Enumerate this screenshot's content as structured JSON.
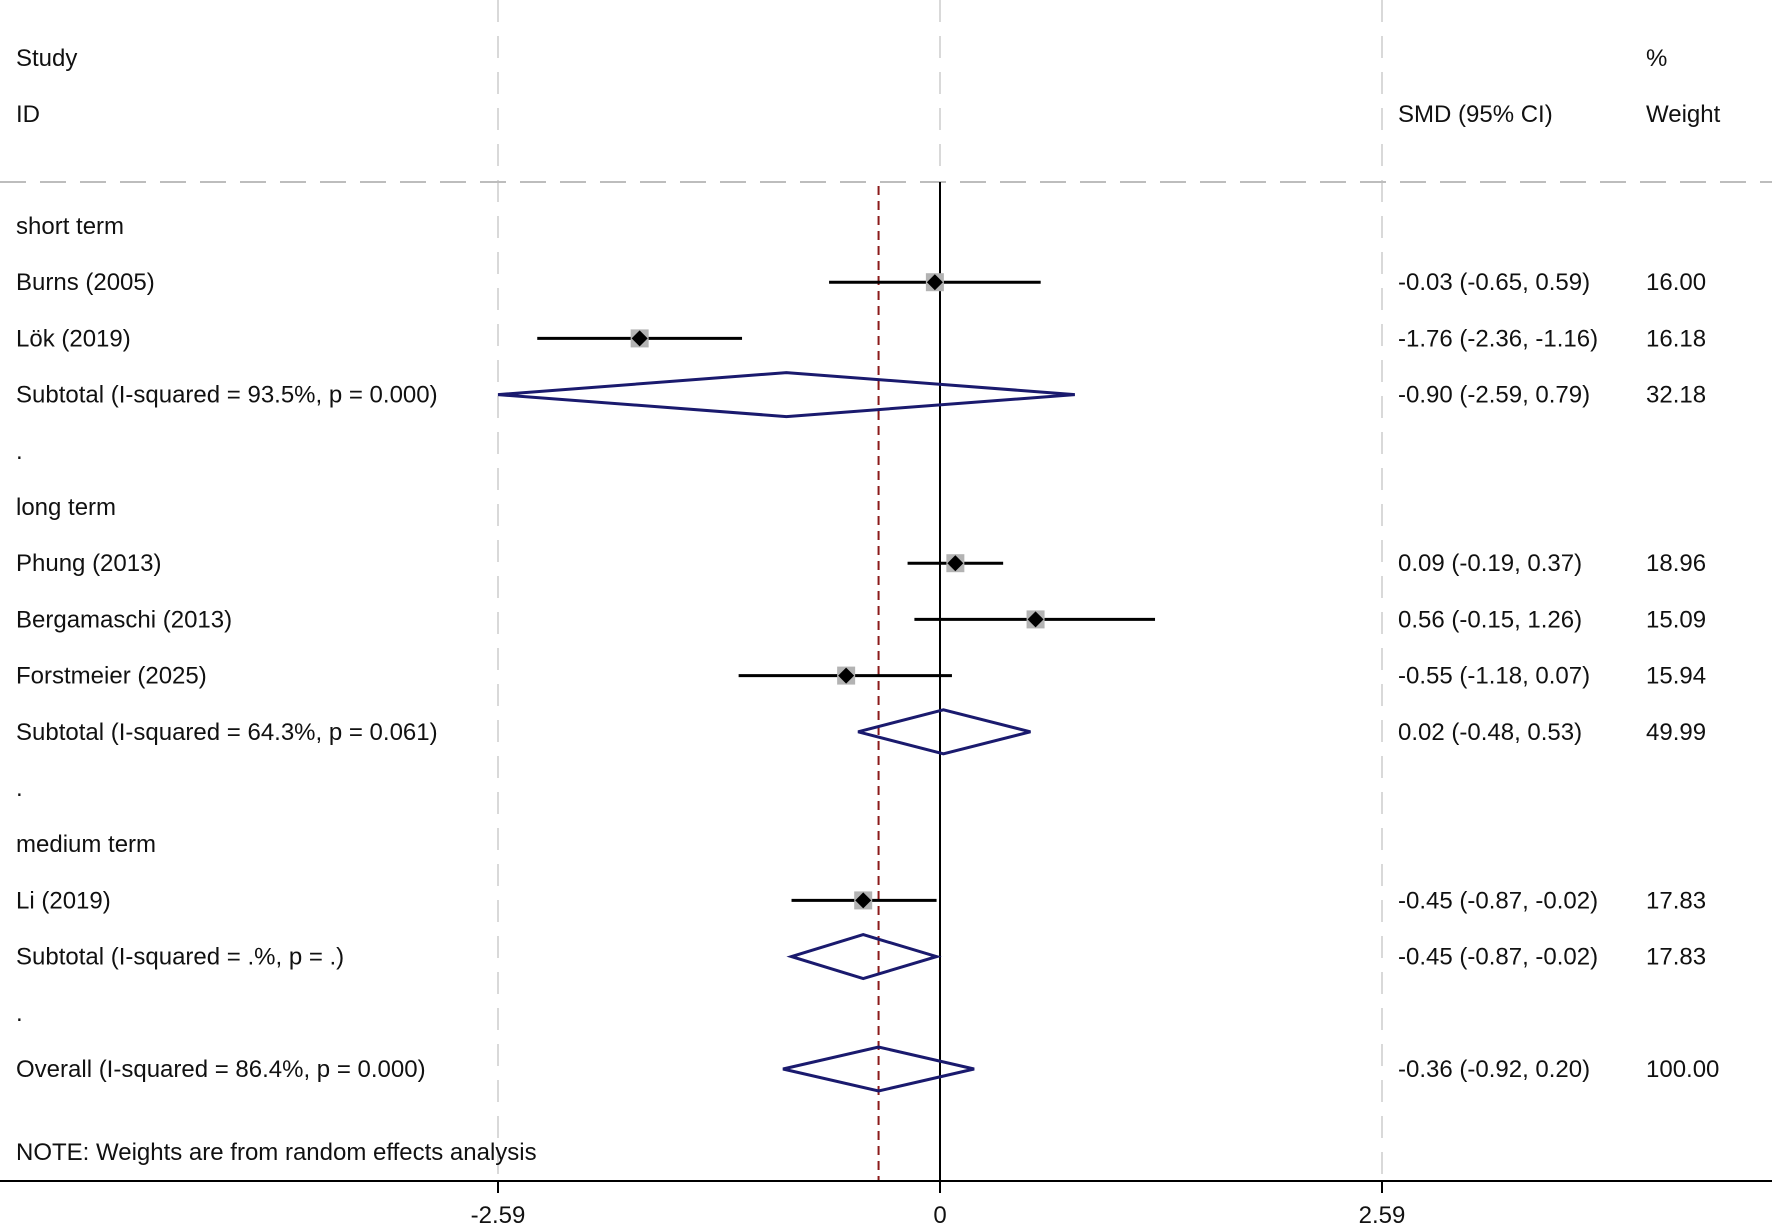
{
  "chart_data": {
    "type": "forest",
    "header": {
      "study_line1": "Study",
      "study_line2": "ID",
      "ci_header": "SMD (95% CI)",
      "weight_line1": "%",
      "weight_line2": "Weight"
    },
    "xticks": [
      {
        "value": -2.59,
        "label": "-2.59"
      },
      {
        "value": 0,
        "label": "0"
      },
      {
        "value": 2.59,
        "label": "2.59"
      }
    ],
    "xlim": [
      -2.59,
      2.59
    ],
    "overall_line": -0.36,
    "rows": [
      {
        "kind": "group",
        "label": "short term"
      },
      {
        "kind": "study",
        "label": "Burns (2005)",
        "est": -0.03,
        "lo": -0.65,
        "hi": 0.59,
        "ci": "-0.03 (-0.65, 0.59)",
        "weight": "16.00"
      },
      {
        "kind": "study",
        "label": "Lök (2019)",
        "est": -1.76,
        "lo": -2.36,
        "hi": -1.16,
        "ci": "-1.76 (-2.36, -1.16)",
        "weight": "16.18"
      },
      {
        "kind": "subtotal",
        "label": "Subtotal  (I-squared = 93.5%, p = 0.000)",
        "est": -0.9,
        "lo": -2.59,
        "hi": 0.79,
        "ci": "-0.90 (-2.59, 0.79)",
        "weight": "32.18"
      },
      {
        "kind": "spacer",
        "label": "."
      },
      {
        "kind": "group",
        "label": "long term"
      },
      {
        "kind": "study",
        "label": "Phung (2013)",
        "est": 0.09,
        "lo": -0.19,
        "hi": 0.37,
        "ci": "0.09 (-0.19, 0.37)",
        "weight": "18.96"
      },
      {
        "kind": "study",
        "label": "Bergamaschi (2013)",
        "est": 0.56,
        "lo": -0.15,
        "hi": 1.26,
        "ci": "0.56 (-0.15, 1.26)",
        "weight": "15.09"
      },
      {
        "kind": "study",
        "label": "Forstmeier (2025)",
        "est": -0.55,
        "lo": -1.18,
        "hi": 0.07,
        "ci": "-0.55 (-1.18, 0.07)",
        "weight": "15.94"
      },
      {
        "kind": "subtotal",
        "label": "Subtotal  (I-squared = 64.3%, p = 0.061)",
        "est": 0.02,
        "lo": -0.48,
        "hi": 0.53,
        "ci": "0.02 (-0.48, 0.53)",
        "weight": "49.99"
      },
      {
        "kind": "spacer",
        "label": "."
      },
      {
        "kind": "group",
        "label": "medium term"
      },
      {
        "kind": "study",
        "label": "Li (2019)",
        "est": -0.45,
        "lo": -0.87,
        "hi": -0.02,
        "ci": "-0.45 (-0.87, -0.02)",
        "weight": "17.83"
      },
      {
        "kind": "subtotal",
        "label": "Subtotal  (I-squared = .%, p = .)",
        "est": -0.45,
        "lo": -0.87,
        "hi": -0.02,
        "ci": "-0.45 (-0.87, -0.02)",
        "weight": "17.83"
      },
      {
        "kind": "spacer",
        "label": "."
      },
      {
        "kind": "overall",
        "label": "Overall  (I-squared = 86.4%, p = 0.000)",
        "est": -0.36,
        "lo": -0.92,
        "hi": 0.2,
        "ci": "-0.36 (-0.92, 0.20)",
        "weight": "100.00"
      }
    ],
    "note": "NOTE: Weights are from random effects analysis",
    "colors": {
      "diamond": "#1a1a6e",
      "overall_line": "#8b1a1a",
      "marker": "#000000",
      "weight_box": "#b3b3b3",
      "grid": "#d9d9d9",
      "axis": "#000000"
    }
  }
}
